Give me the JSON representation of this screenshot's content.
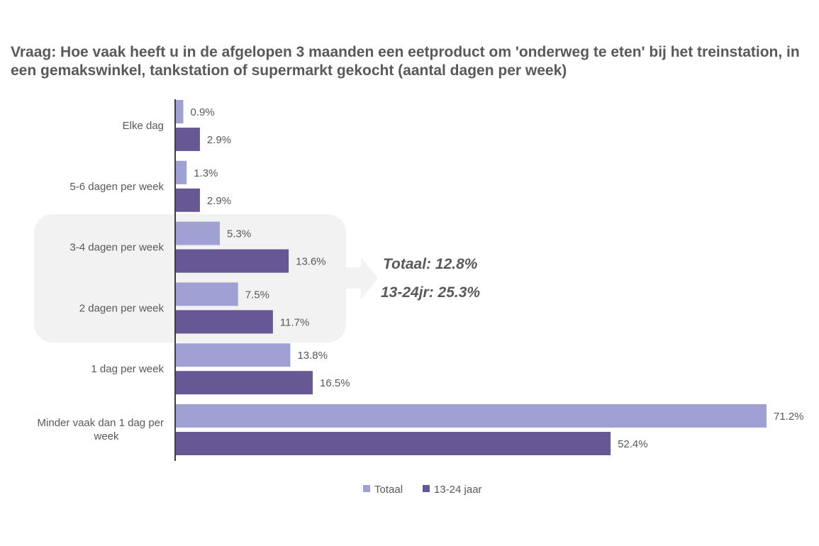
{
  "chart_data": {
    "type": "bar",
    "orientation": "horizontal",
    "title": "Vraag: Hoe vaak heeft u in de afgelopen 3 maanden een eetproduct om 'onderweg te eten' bij het treinstation, in een gemakswinkel, tankstation of supermarkt gekocht (aantal dagen per week)",
    "categories": [
      "Elke dag",
      "5-6 dagen per week",
      "3-4 dagen per week",
      "2 dagen per week",
      "1 dag per week",
      "Minder vaak dan 1 dag per week"
    ],
    "series": [
      {
        "name": "Totaal",
        "color": "#9fa1d5",
        "values": [
          0.9,
          1.3,
          5.3,
          7.5,
          13.8,
          71.2
        ],
        "labels": [
          "0.9%",
          "1.3%",
          "5.3%",
          "7.5%",
          "13.8%",
          "71.2%"
        ]
      },
      {
        "name": "13-24 jaar",
        "color": "#675794",
        "values": [
          2.9,
          2.9,
          13.6,
          11.7,
          16.5,
          52.4
        ],
        "labels": [
          "2.9%",
          "2.9%",
          "13.6%",
          "11.7%",
          "16.5%",
          "52.4%"
        ]
      }
    ],
    "xlim": [
      0,
      75
    ],
    "grid": false,
    "legend": "bottom",
    "highlight": {
      "categories": [
        "3-4 dagen per week",
        "2 dagen per week"
      ],
      "color": "#f2f2f2",
      "lines": [
        "Totaal: 12.8%",
        "13-24jr: 25.3%"
      ]
    }
  }
}
